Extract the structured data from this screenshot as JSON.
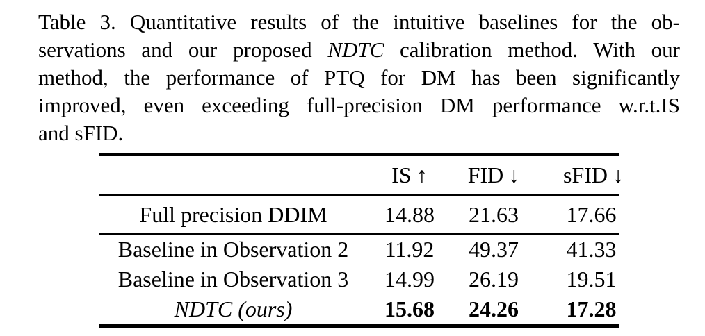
{
  "caption": {
    "line1": "Table 3. Quantitative results of the intuitive baselines for the ob-",
    "line2": {
      "pre": "servations and our proposed ",
      "italic": "NDTC",
      "post": " calibration method. With our"
    },
    "line3": "method, the performance of PTQ for DM has been significantly",
    "line4": "improved, even exceeding full-precision DM performance w.r.t.IS",
    "line5": "and sFID."
  },
  "table": {
    "header": {
      "method": "",
      "is": {
        "text": "IS",
        "arrow": "↑"
      },
      "fid": {
        "text": "FID",
        "arrow": "↓"
      },
      "sfid": {
        "text": "sFID",
        "arrow": "↓"
      }
    },
    "rows": [
      {
        "label": "Full precision DDIM",
        "is": "14.88",
        "fid": "21.63",
        "sfid": "17.66"
      },
      {
        "label": "Baseline in Observation 2",
        "is": "11.92",
        "fid": "49.37",
        "sfid": "41.33"
      },
      {
        "label": "Baseline in Observation 3",
        "is": "14.99",
        "fid": "26.19",
        "sfid": "19.51"
      },
      {
        "label": "NDTC (ours)",
        "is": "15.68",
        "fid": "24.26",
        "sfid": "17.28"
      }
    ]
  }
}
